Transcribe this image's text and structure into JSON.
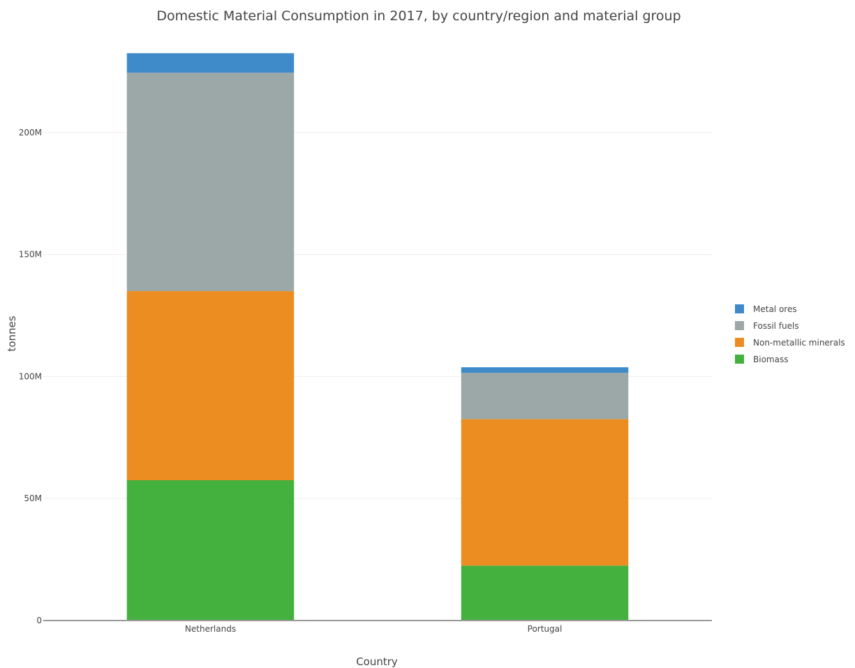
{
  "chart_data": {
    "type": "bar",
    "stacked": true,
    "title": "Domestic Material Consumption in 2017, by country/region and material group",
    "xlabel": "Country",
    "ylabel": "tonnes",
    "categories": [
      "Netherlands",
      "Portugal"
    ],
    "ylim": [
      0,
      240000000
    ],
    "yticks": [
      0,
      50000000,
      100000000,
      150000000,
      200000000
    ],
    "ytick_labels": [
      "0",
      "50M",
      "100M",
      "150M",
      "200M"
    ],
    "grid": true,
    "legend_position": "right",
    "series": [
      {
        "name": "Biomass",
        "color": "#44b03e",
        "values": [
          57500000,
          22500000
        ]
      },
      {
        "name": "Non-metallic minerals",
        "color": "#ec8d21",
        "values": [
          77500000,
          60000000
        ]
      },
      {
        "name": "Fossil fuels",
        "color": "#9ca8a7",
        "values": [
          89500000,
          19000000
        ]
      },
      {
        "name": "Metal ores",
        "color": "#3f8bca",
        "values": [
          8000000,
          2300000
        ]
      }
    ],
    "legend_order": [
      "Metal ores",
      "Fossil fuels",
      "Non-metallic minerals",
      "Biomass"
    ]
  }
}
